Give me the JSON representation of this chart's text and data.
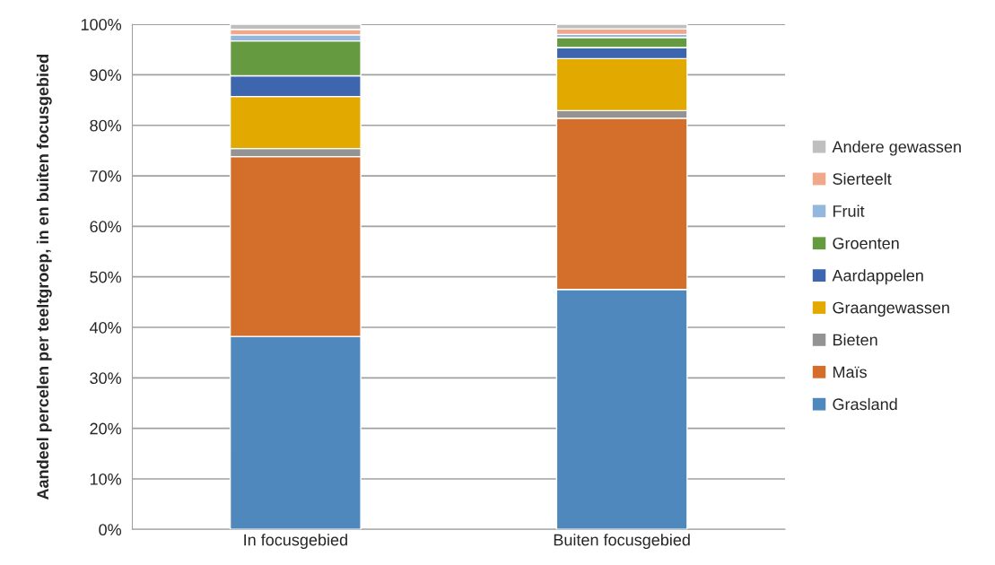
{
  "chart_data": {
    "type": "bar",
    "stacked": true,
    "ylabel": "Aandeel percelen per teeltgroep, in en buiten focusgebied",
    "categories": [
      "In focusgebied",
      "Buiten focusgebied"
    ],
    "series": [
      {
        "name": "Grasland",
        "color": "#4f88bd",
        "values": [
          38.2,
          47.5
        ]
      },
      {
        "name": "Maïs",
        "color": "#d36f2b",
        "values": [
          35.6,
          33.9
        ]
      },
      {
        "name": "Bieten",
        "color": "#939393",
        "values": [
          1.6,
          1.5
        ]
      },
      {
        "name": "Graangewassen",
        "color": "#e2aa00",
        "values": [
          10.3,
          10.3
        ]
      },
      {
        "name": "Aardappelen",
        "color": "#3d66ae",
        "values": [
          4.1,
          2.2
        ]
      },
      {
        "name": "Groenten",
        "color": "#659a41",
        "values": [
          6.9,
          2.0
        ]
      },
      {
        "name": "Fruit",
        "color": "#94b7de",
        "values": [
          1.2,
          0.6
        ]
      },
      {
        "name": "Sierteelt",
        "color": "#f1a78a",
        "values": [
          1.1,
          1.1
        ]
      },
      {
        "name": "Andere gewassen",
        "color": "#bfbfbf",
        "values": [
          1.0,
          0.9
        ]
      }
    ],
    "ylim": [
      0,
      100
    ],
    "yticks": [
      {
        "value": 0,
        "label": "0%"
      },
      {
        "value": 10,
        "label": "10%"
      },
      {
        "value": 20,
        "label": "20%"
      },
      {
        "value": 30,
        "label": "30%"
      },
      {
        "value": 40,
        "label": "40%"
      },
      {
        "value": 50,
        "label": "50%"
      },
      {
        "value": 60,
        "label": "60%"
      },
      {
        "value": 70,
        "label": "70%"
      },
      {
        "value": 80,
        "label": "80%"
      },
      {
        "value": 90,
        "label": "90%"
      },
      {
        "value": 100,
        "label": "100%"
      }
    ],
    "grid": "y",
    "legend": "right"
  }
}
